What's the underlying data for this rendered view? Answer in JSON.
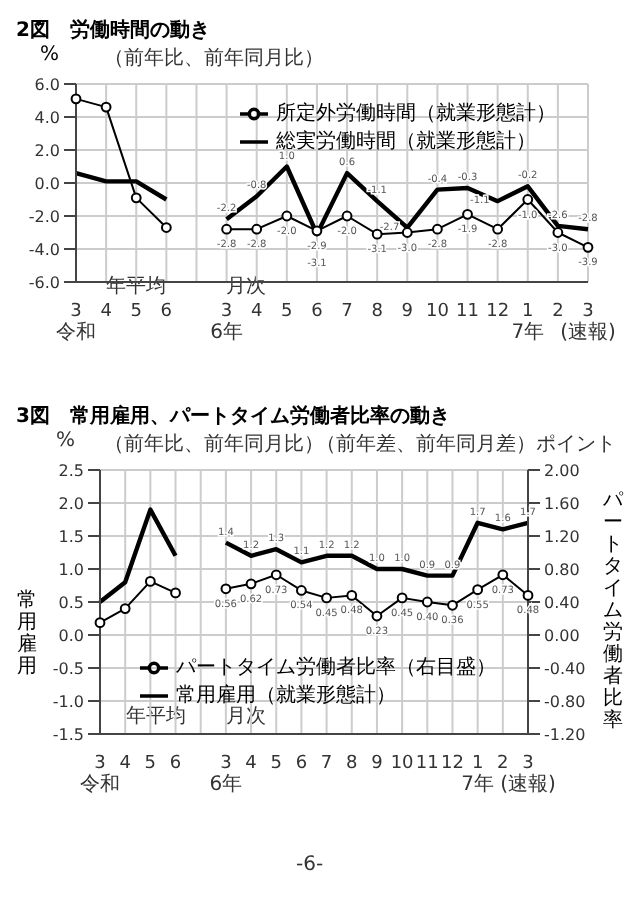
{
  "chart_data": [
    {
      "type": "line",
      "title": "2図　労働時間の動き",
      "subtitle": "（前年比、前年同月比）",
      "ylabel": "%",
      "categories": [
        "3\n令和",
        "4",
        "5",
        "6",
        null,
        "3\n6年",
        "4",
        "5",
        "6",
        "7",
        "8",
        "9",
        "10",
        "11",
        "12",
        "1\n7年",
        "2",
        "3 (速報)"
      ],
      "series": [
        {
          "name": "総実労働時間（就業形態計）",
          "color": "#000000",
          "marker": "none",
          "values": [
            0.6,
            0.1,
            0.1,
            -1.0,
            null,
            -2.2,
            -0.8,
            1.0,
            -3.1,
            0.6,
            -1.1,
            -2.7,
            -0.4,
            -0.3,
            -1.1,
            -0.2,
            -2.6,
            -2.8
          ],
          "value_labels": [
            null,
            null,
            null,
            null,
            null,
            "-2.2",
            "-0.8",
            "1.0",
            "-3.1",
            "0.6",
            "-1.1",
            "-2.7",
            "-0.4",
            "-0.3",
            "-1.1",
            "-0.2",
            "-2.6",
            "-2.8"
          ]
        },
        {
          "name": "所定外労働時間（就業形態計）",
          "color": "#000000",
          "marker": "circle",
          "values": [
            5.1,
            4.6,
            -0.9,
            -2.7,
            null,
            -2.8,
            -2.8,
            -2.0,
            -2.9,
            -2.0,
            -3.1,
            -3.0,
            -2.8,
            -1.9,
            -2.8,
            -1.0,
            -3.0,
            -3.9
          ],
          "value_labels": [
            null,
            null,
            null,
            null,
            null,
            "-2.8",
            "-2.8",
            "-2.0",
            "-2.9",
            "-2.0",
            "-3.1",
            "-3.0",
            "-2.8",
            "-1.9",
            "-2.8",
            "-1.0",
            "-3.0",
            "-3.9"
          ]
        }
      ],
      "ylim": [
        -6,
        6
      ],
      "yticks": [
        {
          "value": -6,
          "label": "-6.0"
        },
        {
          "value": -4,
          "label": "-4.0"
        },
        {
          "value": -2,
          "label": "-2.0"
        },
        {
          "value": 0,
          "label": "0.0"
        },
        {
          "value": 2,
          "label": "2.0"
        },
        {
          "value": 4,
          "label": "4.0"
        },
        {
          "value": 6,
          "label": "6.0"
        }
      ],
      "grid": true,
      "legend": "top right",
      "annotations": [
        "年平均",
        "月次"
      ]
    },
    {
      "type": "line",
      "title": "3図　常用雇用、パートタイム労働者比率の動き",
      "subtitle": "（前年比、前年同月比）",
      "ylabel": "常用雇用",
      "y2label": "パートタイム労働者比率",
      "categories": [
        "3\n令和",
        "4",
        "5",
        "6",
        null,
        "3\n6年",
        "4",
        "5",
        "6",
        "7",
        "8",
        "9",
        "10",
        "11",
        "12",
        "1\n7年",
        "2",
        "3 (速報)"
      ],
      "series": [
        {
          "name": "常用雇用（就業形態計）",
          "color": "#000000",
          "marker": "none",
          "values": [
            0.5,
            0.8,
            1.9,
            1.2,
            null,
            1.4,
            1.2,
            1.3,
            1.1,
            1.2,
            1.2,
            1.0,
            1.0,
            0.9,
            0.9,
            1.7,
            1.6,
            1.7
          ],
          "value_labels": [
            null,
            null,
            null,
            null,
            null,
            "1.4",
            "1.2",
            "1.3",
            "1.1",
            "1.2",
            "1.2",
            "1.0",
            "1.0",
            "0.9",
            "0.9",
            "1.7",
            "1.6",
            "1.7"
          ]
        },
        {
          "name": "パートタイム労働者比率（右目盛）",
          "color": "#000000",
          "marker": "circle",
          "axis": "y2",
          "values": [
            0.15,
            0.32,
            0.65,
            0.51,
            null,
            0.56,
            0.62,
            0.73,
            0.54,
            0.45,
            0.48,
            0.23,
            0.45,
            0.4,
            0.36,
            0.55,
            0.73,
            0.48
          ],
          "value_labels": [
            null,
            null,
            null,
            null,
            null,
            "0.56",
            "0.62",
            "0.73",
            "0.54",
            "0.45",
            "0.48",
            "0.23",
            "0.45",
            "0.40",
            "0.36",
            "0.55",
            "0.73",
            "0.48"
          ]
        }
      ],
      "ylim": [
        -1.5,
        2.5
      ],
      "yticks": [
        {
          "value": -1.5,
          "label": "-1.5"
        },
        {
          "value": -1,
          "label": "-1.0"
        },
        {
          "value": -0.5,
          "label": "-0.5"
        },
        {
          "value": 0,
          "label": "0.0"
        },
        {
          "value": 0.5,
          "label": "0.5"
        },
        {
          "value": 1,
          "label": "1.0"
        },
        {
          "value": 1.5,
          "label": "1.5"
        },
        {
          "value": 2,
          "label": "2.0"
        },
        {
          "value": 2.5,
          "label": "2.5"
        }
      ],
      "y2lim": [
        -1.2,
        2.0
      ],
      "y2ticks": [
        {
          "value": -1.2,
          "label": "-1.20"
        },
        {
          "value": -0.8,
          "label": "-0.80"
        },
        {
          "value": -0.4,
          "label": "-0.40"
        },
        {
          "value": 0,
          "label": "0.00"
        },
        {
          "value": 0.4,
          "label": "0.40"
        },
        {
          "value": 0.8,
          "label": "0.80"
        },
        {
          "value": 1.2,
          "label": "1.20"
        },
        {
          "value": 1.6,
          "label": "1.60"
        },
        {
          "value": 2.0,
          "label": "2.00"
        }
      ],
      "grid": true,
      "legend": "bottom right",
      "annotations": [
        "%",
        "（前年差、前年同月差）",
        "ポイント",
        "年平均",
        "月次",
        "-6-"
      ]
    }
  ]
}
